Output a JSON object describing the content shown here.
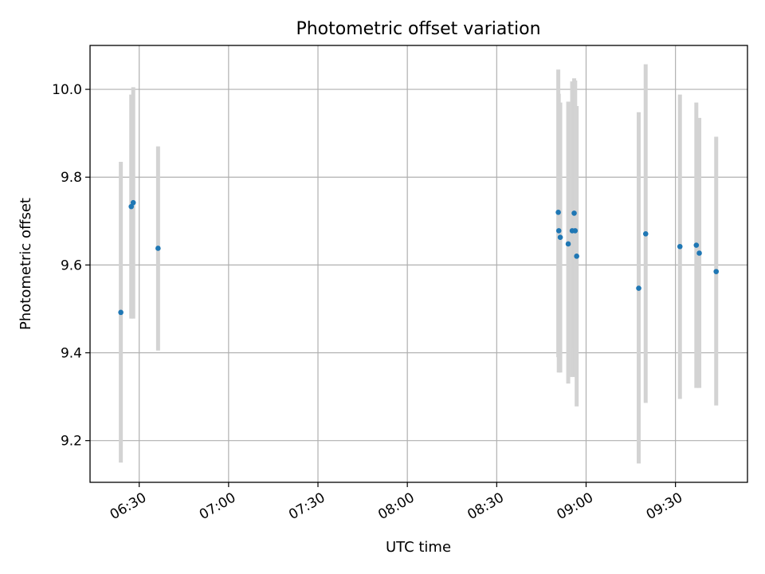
{
  "chart_data": {
    "type": "scatter",
    "title": "Photometric offset variation",
    "xlabel": "UTC time",
    "ylabel": "Photometric offset",
    "xlim": [
      "06:13:30",
      "09:54:10"
    ],
    "ylim": [
      9.105,
      10.1
    ],
    "grid": true,
    "x_ticks": [
      "06:30",
      "07:00",
      "07:30",
      "08:00",
      "08:30",
      "09:00",
      "09:30"
    ],
    "y_ticks": [
      "9.2",
      "9.4",
      "9.6",
      "9.8",
      "10.0"
    ],
    "colors": {
      "point": "#1f77b4",
      "errorbar": "#d3d3d3",
      "grid": "#b0b0b0"
    },
    "points": [
      {
        "x": "06:23:50",
        "y": 9.492,
        "yerr_low": 9.15,
        "yerr_high": 9.835
      },
      {
        "x": "06:27:20",
        "y": 9.733,
        "yerr_low": 9.478,
        "yerr_high": 9.988
      },
      {
        "x": "06:28:00",
        "y": 9.742,
        "yerr_low": 9.478,
        "yerr_high": 10.005
      },
      {
        "x": "06:36:20",
        "y": 9.638,
        "yerr_low": 9.405,
        "yerr_high": 9.87
      },
      {
        "x": "08:50:40",
        "y": 9.72,
        "yerr_low": 9.39,
        "yerr_high": 10.045
      },
      {
        "x": "08:50:50",
        "y": 9.678,
        "yerr_low": 9.355,
        "yerr_high": 9.99
      },
      {
        "x": "08:51:20",
        "y": 9.663,
        "yerr_low": 9.355,
        "yerr_high": 9.97
      },
      {
        "x": "08:54:00",
        "y": 9.648,
        "yerr_low": 9.33,
        "yerr_high": 9.972
      },
      {
        "x": "08:55:20",
        "y": 9.678,
        "yerr_low": 9.345,
        "yerr_high": 10.018
      },
      {
        "x": "08:56:00",
        "y": 9.718,
        "yerr_low": 9.41,
        "yerr_high": 10.025
      },
      {
        "x": "08:56:20",
        "y": 9.678,
        "yerr_low": 9.345,
        "yerr_high": 10.02
      },
      {
        "x": "08:56:50",
        "y": 9.62,
        "yerr_low": 9.278,
        "yerr_high": 9.962
      },
      {
        "x": "09:17:40",
        "y": 9.547,
        "yerr_low": 9.148,
        "yerr_high": 9.948
      },
      {
        "x": "09:20:00",
        "y": 9.671,
        "yerr_low": 9.286,
        "yerr_high": 10.057
      },
      {
        "x": "09:31:30",
        "y": 9.642,
        "yerr_low": 9.295,
        "yerr_high": 9.988
      },
      {
        "x": "09:37:00",
        "y": 9.645,
        "yerr_low": 9.32,
        "yerr_high": 9.97
      },
      {
        "x": "09:38:00",
        "y": 9.627,
        "yerr_low": 9.32,
        "yerr_high": 9.935
      },
      {
        "x": "09:43:40",
        "y": 9.585,
        "yerr_low": 9.28,
        "yerr_high": 9.892
      }
    ]
  }
}
